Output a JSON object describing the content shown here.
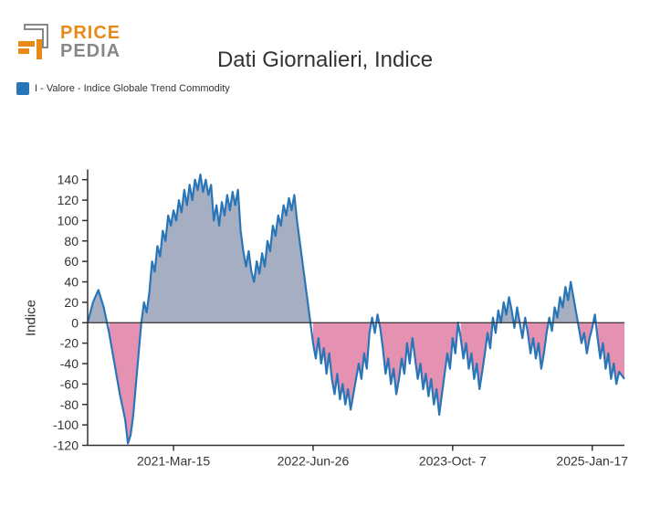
{
  "logo": {
    "line1": "PRICE",
    "line2": "PEDIA",
    "color1": "#e88a1a",
    "color2": "#888888",
    "mark_color": "#e88a1a",
    "mark_outline": "#888888"
  },
  "title": "Dati Giornalieri, Indice",
  "legend": {
    "swatch_color": "#2876b8",
    "label": "I - Valore - Indice Globale Trend Commodity"
  },
  "chart": {
    "ylabel": "Indice",
    "ylim": [
      -120,
      150
    ],
    "yticks": [
      -120,
      -100,
      -80,
      -60,
      -40,
      -20,
      0,
      20,
      40,
      60,
      80,
      100,
      120,
      140
    ],
    "xticks": [
      {
        "t": 0.16,
        "label": "2021-Mar-15"
      },
      {
        "t": 0.42,
        "label": "2022-Jun-26"
      },
      {
        "t": 0.68,
        "label": "2023-Oct- 7"
      },
      {
        "t": 0.94,
        "label": "2025-Jan-17"
      }
    ],
    "line_color": "#2876b8",
    "line_width": 2.2,
    "pos_fill": "#a6aec2",
    "neg_fill": "#e591b1",
    "axis_color": "#333333",
    "background": "#ffffff",
    "points": [
      {
        "t": 0.0,
        "v": 0
      },
      {
        "t": 0.01,
        "v": 20
      },
      {
        "t": 0.02,
        "v": 32
      },
      {
        "t": 0.03,
        "v": 15
      },
      {
        "t": 0.04,
        "v": -10
      },
      {
        "t": 0.05,
        "v": -40
      },
      {
        "t": 0.06,
        "v": -70
      },
      {
        "t": 0.07,
        "v": -95
      },
      {
        "t": 0.075,
        "v": -118
      },
      {
        "t": 0.08,
        "v": -110
      },
      {
        "t": 0.085,
        "v": -90
      },
      {
        "t": 0.09,
        "v": -60
      },
      {
        "t": 0.095,
        "v": -30
      },
      {
        "t": 0.1,
        "v": 0
      },
      {
        "t": 0.105,
        "v": 20
      },
      {
        "t": 0.11,
        "v": 10
      },
      {
        "t": 0.115,
        "v": 30
      },
      {
        "t": 0.12,
        "v": 60
      },
      {
        "t": 0.125,
        "v": 50
      },
      {
        "t": 0.13,
        "v": 75
      },
      {
        "t": 0.135,
        "v": 65
      },
      {
        "t": 0.14,
        "v": 90
      },
      {
        "t": 0.145,
        "v": 80
      },
      {
        "t": 0.15,
        "v": 105
      },
      {
        "t": 0.155,
        "v": 95
      },
      {
        "t": 0.16,
        "v": 110
      },
      {
        "t": 0.165,
        "v": 100
      },
      {
        "t": 0.17,
        "v": 120
      },
      {
        "t": 0.175,
        "v": 108
      },
      {
        "t": 0.18,
        "v": 130
      },
      {
        "t": 0.185,
        "v": 115
      },
      {
        "t": 0.19,
        "v": 135
      },
      {
        "t": 0.195,
        "v": 120
      },
      {
        "t": 0.2,
        "v": 140
      },
      {
        "t": 0.205,
        "v": 130
      },
      {
        "t": 0.21,
        "v": 145
      },
      {
        "t": 0.215,
        "v": 128
      },
      {
        "t": 0.22,
        "v": 140
      },
      {
        "t": 0.225,
        "v": 125
      },
      {
        "t": 0.23,
        "v": 135
      },
      {
        "t": 0.235,
        "v": 100
      },
      {
        "t": 0.24,
        "v": 115
      },
      {
        "t": 0.245,
        "v": 95
      },
      {
        "t": 0.25,
        "v": 118
      },
      {
        "t": 0.255,
        "v": 105
      },
      {
        "t": 0.26,
        "v": 125
      },
      {
        "t": 0.265,
        "v": 110
      },
      {
        "t": 0.27,
        "v": 128
      },
      {
        "t": 0.275,
        "v": 115
      },
      {
        "t": 0.28,
        "v": 130
      },
      {
        "t": 0.285,
        "v": 90
      },
      {
        "t": 0.29,
        "v": 70
      },
      {
        "t": 0.295,
        "v": 55
      },
      {
        "t": 0.3,
        "v": 70
      },
      {
        "t": 0.305,
        "v": 50
      },
      {
        "t": 0.31,
        "v": 40
      },
      {
        "t": 0.315,
        "v": 60
      },
      {
        "t": 0.32,
        "v": 48
      },
      {
        "t": 0.325,
        "v": 68
      },
      {
        "t": 0.33,
        "v": 55
      },
      {
        "t": 0.335,
        "v": 80
      },
      {
        "t": 0.34,
        "v": 70
      },
      {
        "t": 0.345,
        "v": 95
      },
      {
        "t": 0.35,
        "v": 85
      },
      {
        "t": 0.355,
        "v": 105
      },
      {
        "t": 0.36,
        "v": 95
      },
      {
        "t": 0.365,
        "v": 115
      },
      {
        "t": 0.37,
        "v": 105
      },
      {
        "t": 0.375,
        "v": 122
      },
      {
        "t": 0.38,
        "v": 110
      },
      {
        "t": 0.385,
        "v": 125
      },
      {
        "t": 0.39,
        "v": 100
      },
      {
        "t": 0.395,
        "v": 80
      },
      {
        "t": 0.4,
        "v": 60
      },
      {
        "t": 0.405,
        "v": 40
      },
      {
        "t": 0.41,
        "v": 20
      },
      {
        "t": 0.415,
        "v": 0
      },
      {
        "t": 0.42,
        "v": -20
      },
      {
        "t": 0.425,
        "v": -35
      },
      {
        "t": 0.43,
        "v": -15
      },
      {
        "t": 0.435,
        "v": -40
      },
      {
        "t": 0.44,
        "v": -25
      },
      {
        "t": 0.445,
        "v": -50
      },
      {
        "t": 0.45,
        "v": -30
      },
      {
        "t": 0.455,
        "v": -55
      },
      {
        "t": 0.46,
        "v": -70
      },
      {
        "t": 0.465,
        "v": -50
      },
      {
        "t": 0.47,
        "v": -75
      },
      {
        "t": 0.475,
        "v": -60
      },
      {
        "t": 0.48,
        "v": -80
      },
      {
        "t": 0.485,
        "v": -65
      },
      {
        "t": 0.49,
        "v": -85
      },
      {
        "t": 0.495,
        "v": -70
      },
      {
        "t": 0.5,
        "v": -55
      },
      {
        "t": 0.505,
        "v": -40
      },
      {
        "t": 0.51,
        "v": -55
      },
      {
        "t": 0.515,
        "v": -30
      },
      {
        "t": 0.52,
        "v": -45
      },
      {
        "t": 0.525,
        "v": -10
      },
      {
        "t": 0.53,
        "v": 5
      },
      {
        "t": 0.535,
        "v": -10
      },
      {
        "t": 0.54,
        "v": 8
      },
      {
        "t": 0.545,
        "v": -5
      },
      {
        "t": 0.55,
        "v": -25
      },
      {
        "t": 0.555,
        "v": -50
      },
      {
        "t": 0.56,
        "v": -35
      },
      {
        "t": 0.565,
        "v": -60
      },
      {
        "t": 0.57,
        "v": -45
      },
      {
        "t": 0.575,
        "v": -70
      },
      {
        "t": 0.58,
        "v": -55
      },
      {
        "t": 0.585,
        "v": -35
      },
      {
        "t": 0.59,
        "v": -50
      },
      {
        "t": 0.595,
        "v": -20
      },
      {
        "t": 0.6,
        "v": -40
      },
      {
        "t": 0.605,
        "v": -15
      },
      {
        "t": 0.61,
        "v": -35
      },
      {
        "t": 0.615,
        "v": -55
      },
      {
        "t": 0.62,
        "v": -40
      },
      {
        "t": 0.625,
        "v": -65
      },
      {
        "t": 0.63,
        "v": -50
      },
      {
        "t": 0.635,
        "v": -72
      },
      {
        "t": 0.64,
        "v": -55
      },
      {
        "t": 0.645,
        "v": -80
      },
      {
        "t": 0.65,
        "v": -65
      },
      {
        "t": 0.655,
        "v": -90
      },
      {
        "t": 0.66,
        "v": -70
      },
      {
        "t": 0.665,
        "v": -50
      },
      {
        "t": 0.67,
        "v": -30
      },
      {
        "t": 0.675,
        "v": -45
      },
      {
        "t": 0.68,
        "v": -15
      },
      {
        "t": 0.685,
        "v": -30
      },
      {
        "t": 0.69,
        "v": 0
      },
      {
        "t": 0.695,
        "v": -15
      },
      {
        "t": 0.7,
        "v": -35
      },
      {
        "t": 0.705,
        "v": -20
      },
      {
        "t": 0.71,
        "v": -45
      },
      {
        "t": 0.715,
        "v": -30
      },
      {
        "t": 0.72,
        "v": -55
      },
      {
        "t": 0.725,
        "v": -40
      },
      {
        "t": 0.73,
        "v": -65
      },
      {
        "t": 0.735,
        "v": -48
      },
      {
        "t": 0.74,
        "v": -30
      },
      {
        "t": 0.745,
        "v": -10
      },
      {
        "t": 0.75,
        "v": -25
      },
      {
        "t": 0.755,
        "v": 5
      },
      {
        "t": 0.76,
        "v": -10
      },
      {
        "t": 0.765,
        "v": 12
      },
      {
        "t": 0.77,
        "v": 0
      },
      {
        "t": 0.775,
        "v": 20
      },
      {
        "t": 0.78,
        "v": 8
      },
      {
        "t": 0.785,
        "v": 25
      },
      {
        "t": 0.79,
        "v": 12
      },
      {
        "t": 0.795,
        "v": -5
      },
      {
        "t": 0.8,
        "v": 15
      },
      {
        "t": 0.805,
        "v": 0
      },
      {
        "t": 0.81,
        "v": -15
      },
      {
        "t": 0.815,
        "v": 5
      },
      {
        "t": 0.82,
        "v": -10
      },
      {
        "t": 0.825,
        "v": -30
      },
      {
        "t": 0.83,
        "v": -15
      },
      {
        "t": 0.835,
        "v": -35
      },
      {
        "t": 0.84,
        "v": -20
      },
      {
        "t": 0.845,
        "v": -45
      },
      {
        "t": 0.85,
        "v": -30
      },
      {
        "t": 0.855,
        "v": -10
      },
      {
        "t": 0.86,
        "v": 5
      },
      {
        "t": 0.865,
        "v": -8
      },
      {
        "t": 0.87,
        "v": 15
      },
      {
        "t": 0.875,
        "v": 5
      },
      {
        "t": 0.88,
        "v": 25
      },
      {
        "t": 0.885,
        "v": 15
      },
      {
        "t": 0.89,
        "v": 35
      },
      {
        "t": 0.895,
        "v": 22
      },
      {
        "t": 0.9,
        "v": 40
      },
      {
        "t": 0.905,
        "v": 25
      },
      {
        "t": 0.91,
        "v": 10
      },
      {
        "t": 0.915,
        "v": -5
      },
      {
        "t": 0.92,
        "v": -20
      },
      {
        "t": 0.925,
        "v": -10
      },
      {
        "t": 0.93,
        "v": -30
      },
      {
        "t": 0.935,
        "v": -15
      },
      {
        "t": 0.94,
        "v": -5
      },
      {
        "t": 0.945,
        "v": 8
      },
      {
        "t": 0.95,
        "v": -15
      },
      {
        "t": 0.955,
        "v": -35
      },
      {
        "t": 0.96,
        "v": -20
      },
      {
        "t": 0.965,
        "v": -45
      },
      {
        "t": 0.97,
        "v": -30
      },
      {
        "t": 0.975,
        "v": -55
      },
      {
        "t": 0.98,
        "v": -40
      },
      {
        "t": 0.985,
        "v": -60
      },
      {
        "t": 0.99,
        "v": -48
      },
      {
        "t": 1.0,
        "v": -55
      }
    ]
  }
}
